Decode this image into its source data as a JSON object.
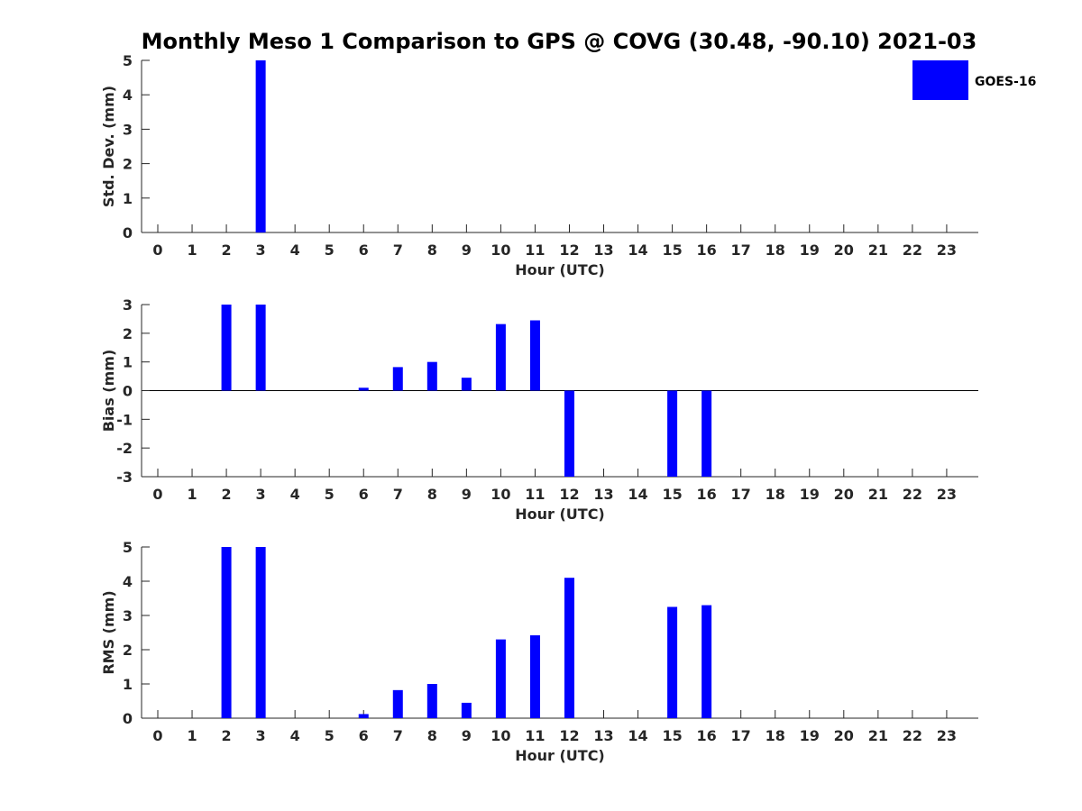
{
  "chart_data": [
    {
      "type": "bar",
      "title": "Monthly Meso 1 Comparison to GPS @ COVG (30.48, -90.10) 2021-03",
      "xlabel": "Hour (UTC)",
      "ylabel": "Std. Dev. (mm)",
      "ylim": [
        0,
        5
      ],
      "yticks": [
        "0",
        "1",
        "2",
        "3",
        "4",
        "5"
      ],
      "categories": [
        "0",
        "1",
        "2",
        "3",
        "4",
        "5",
        "6",
        "7",
        "8",
        "9",
        "10",
        "11",
        "12",
        "13",
        "14",
        "15",
        "16",
        "17",
        "18",
        "19",
        "20",
        "21",
        "22",
        "23"
      ],
      "series": [
        {
          "name": "GOES-16",
          "color": "#0000ff",
          "values": [
            null,
            null,
            null,
            5.0,
            null,
            null,
            null,
            null,
            null,
            null,
            null,
            null,
            null,
            null,
            null,
            null,
            null,
            null,
            null,
            null,
            null,
            null,
            null,
            null
          ]
        }
      ],
      "legend": {
        "entries": [
          "GOES-16"
        ],
        "position": "top-right"
      }
    },
    {
      "type": "bar",
      "xlabel": "Hour (UTC)",
      "ylabel": "Bias (mm)",
      "ylim": [
        -3,
        3
      ],
      "yticks": [
        "-3",
        "-2",
        "-1",
        "0",
        "1",
        "2",
        "3"
      ],
      "categories": [
        "0",
        "1",
        "2",
        "3",
        "4",
        "5",
        "6",
        "7",
        "8",
        "9",
        "10",
        "11",
        "12",
        "13",
        "14",
        "15",
        "16",
        "17",
        "18",
        "19",
        "20",
        "21",
        "22",
        "23"
      ],
      "series": [
        {
          "name": "GOES-16",
          "color": "#0000ff",
          "values": [
            null,
            null,
            3.0,
            3.0,
            null,
            null,
            0.1,
            0.82,
            1.0,
            0.45,
            2.32,
            2.45,
            -3.0,
            null,
            null,
            -3.0,
            -3.0,
            null,
            null,
            null,
            null,
            null,
            null,
            null
          ]
        }
      ]
    },
    {
      "type": "bar",
      "xlabel": "Hour (UTC)",
      "ylabel": "RMS (mm)",
      "ylim": [
        0,
        5
      ],
      "yticks": [
        "0",
        "1",
        "2",
        "3",
        "4",
        "5"
      ],
      "categories": [
        "0",
        "1",
        "2",
        "3",
        "4",
        "5",
        "6",
        "7",
        "8",
        "9",
        "10",
        "11",
        "12",
        "13",
        "14",
        "15",
        "16",
        "17",
        "18",
        "19",
        "20",
        "21",
        "22",
        "23"
      ],
      "series": [
        {
          "name": "GOES-16",
          "color": "#0000ff",
          "values": [
            null,
            null,
            5.0,
            5.0,
            null,
            null,
            0.12,
            0.82,
            1.0,
            0.45,
            2.3,
            2.42,
            4.1,
            null,
            null,
            3.25,
            3.3,
            null,
            null,
            null,
            null,
            null,
            null,
            null
          ]
        }
      ]
    }
  ]
}
